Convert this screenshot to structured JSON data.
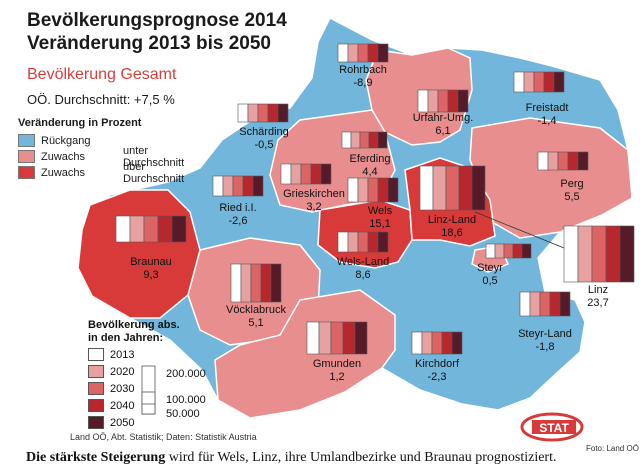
{
  "title_line1": "Bevölkerungsprognose 2014",
  "title_line2": "Veränderung 2013 bis 2050",
  "subtitle": "Bevölkerung Gesamt",
  "average": "OÖ. Durchschnitt: +7,5 %",
  "legend": {
    "heading": "Veränderung in Prozent",
    "items": [
      {
        "label": "Rückgang",
        "detail": "",
        "color": "#72b6dc"
      },
      {
        "label": "Zuwachs",
        "detail": "unter Durchschnitt",
        "color": "#e98e8e"
      },
      {
        "label": "Zuwachs",
        "detail": "über Durchschnitt",
        "color": "#d83a3a"
      }
    ]
  },
  "bar_legend": {
    "heading_line1": "Bevölkerung abs.",
    "heading_line2": "in den Jahren:",
    "years": [
      {
        "label": "2013",
        "color": "#ffffff"
      },
      {
        "label": "2020",
        "color": "#e7a1a1"
      },
      {
        "label": "2030",
        "color": "#dd6464"
      },
      {
        "label": "2040",
        "color": "#b8262e"
      },
      {
        "label": "2050",
        "color": "#561a28"
      }
    ],
    "scale": [
      "200.000",
      "100.000",
      "50.000"
    ]
  },
  "districts": [
    {
      "name": "Rohrbach",
      "value": "-8,9",
      "category": "decline"
    },
    {
      "name": "Urfahr-Umg.",
      "value": "6,1",
      "category": "below"
    },
    {
      "name": "Freistadt",
      "value": "-1,4",
      "category": "decline"
    },
    {
      "name": "Schärding",
      "value": "-0,5",
      "category": "decline"
    },
    {
      "name": "Eferding",
      "value": "4,4",
      "category": "below"
    },
    {
      "name": "Perg",
      "value": "5,5",
      "category": "below"
    },
    {
      "name": "Grieskirchen",
      "value": "3,2",
      "category": "below"
    },
    {
      "name": "Ried i.I.",
      "value": "-2,6",
      "category": "decline"
    },
    {
      "name": "Wels",
      "value": "15,1",
      "category": "above"
    },
    {
      "name": "Linz-Land",
      "value": "18,6",
      "category": "above"
    },
    {
      "name": "Braunau",
      "value": "9,3",
      "category": "above"
    },
    {
      "name": "Wels-Land",
      "value": "8,6",
      "category": "above"
    },
    {
      "name": "Steyr",
      "value": "0,5",
      "category": "below"
    },
    {
      "name": "Linz",
      "value": "23,7",
      "category": "above"
    },
    {
      "name": "Vöcklabruck",
      "value": "5,1",
      "category": "below"
    },
    {
      "name": "Steyr-Land",
      "value": "-1,8",
      "category": "decline"
    },
    {
      "name": "Gmunden",
      "value": "1,2",
      "category": "below"
    },
    {
      "name": "Kirchdorf",
      "value": "-2,3",
      "category": "decline"
    }
  ],
  "credit": "Land OÖ, Abt. Statistik; Daten: Statistik Austria",
  "photo_credit": "Foto: Land OÖ",
  "logo_text": "STAT",
  "caption_bold": "Die stärkste Steigerung",
  "caption_rest": " wird für Wels, Linz, ihre Umlandbezirke und Braunau prognostiziert.",
  "colors": {
    "decline": "#72b6dc",
    "below": "#e98e8e",
    "above": "#d83a3a"
  }
}
